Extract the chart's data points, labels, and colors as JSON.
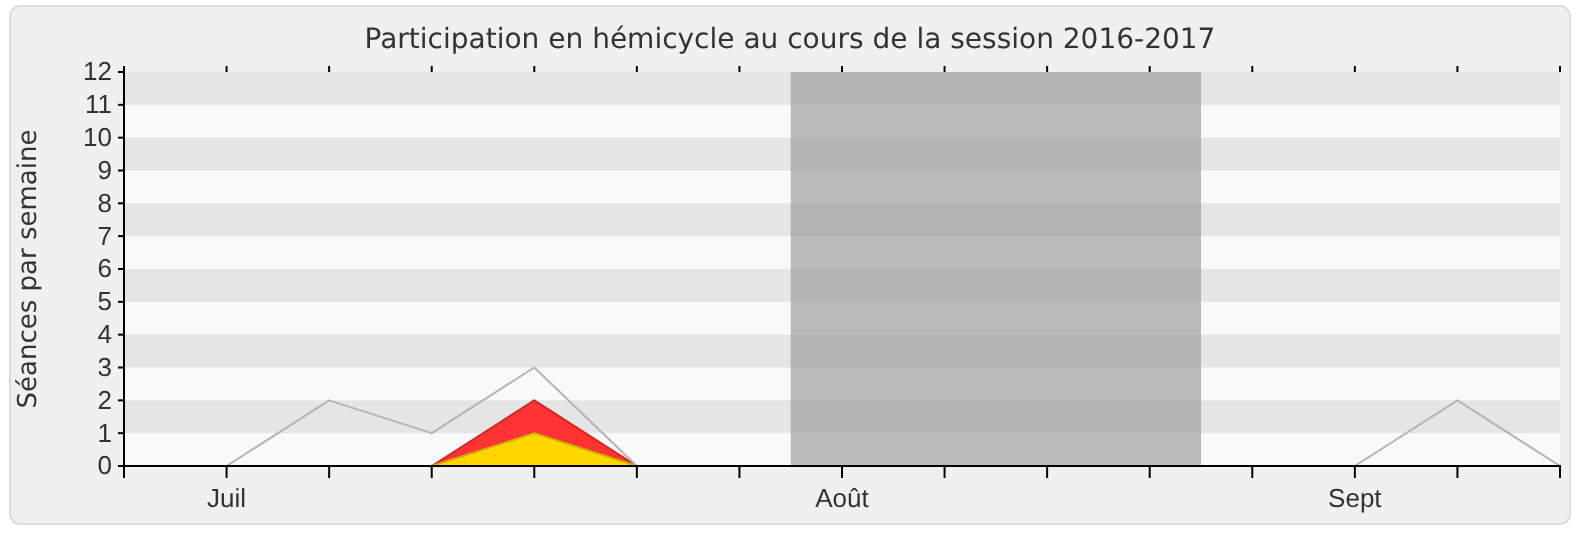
{
  "chart_data": {
    "type": "area",
    "title": "Participation en hémicycle au cours de la session 2016-2017",
    "ylabel": "Séances par semaine",
    "categories": [
      null,
      "Juil",
      null,
      null,
      null,
      null,
      null,
      "Août",
      null,
      null,
      null,
      null,
      "Sept",
      null,
      null
    ],
    "ylim": [
      0,
      12
    ],
    "yticks": [
      0,
      1,
      2,
      3,
      4,
      5,
      6,
      7,
      8,
      9,
      10,
      11,
      12
    ],
    "series": [
      {
        "type": "area",
        "color": "#ff3333",
        "values": [
          0,
          0,
          0,
          0,
          2,
          0,
          0,
          0,
          0,
          0,
          0,
          0,
          0,
          0,
          0
        ]
      },
      {
        "type": "area",
        "color": "#ffd700",
        "values": [
          0,
          0,
          0,
          0,
          1,
          0,
          0,
          0,
          0,
          0,
          0,
          0,
          0,
          0,
          0
        ]
      },
      {
        "type": "line",
        "color": "#b4b4b4",
        "values": [
          null,
          0,
          2,
          1,
          3,
          0,
          0,
          0,
          0,
          0,
          0,
          0,
          0,
          2,
          0
        ]
      }
    ]
  }
}
